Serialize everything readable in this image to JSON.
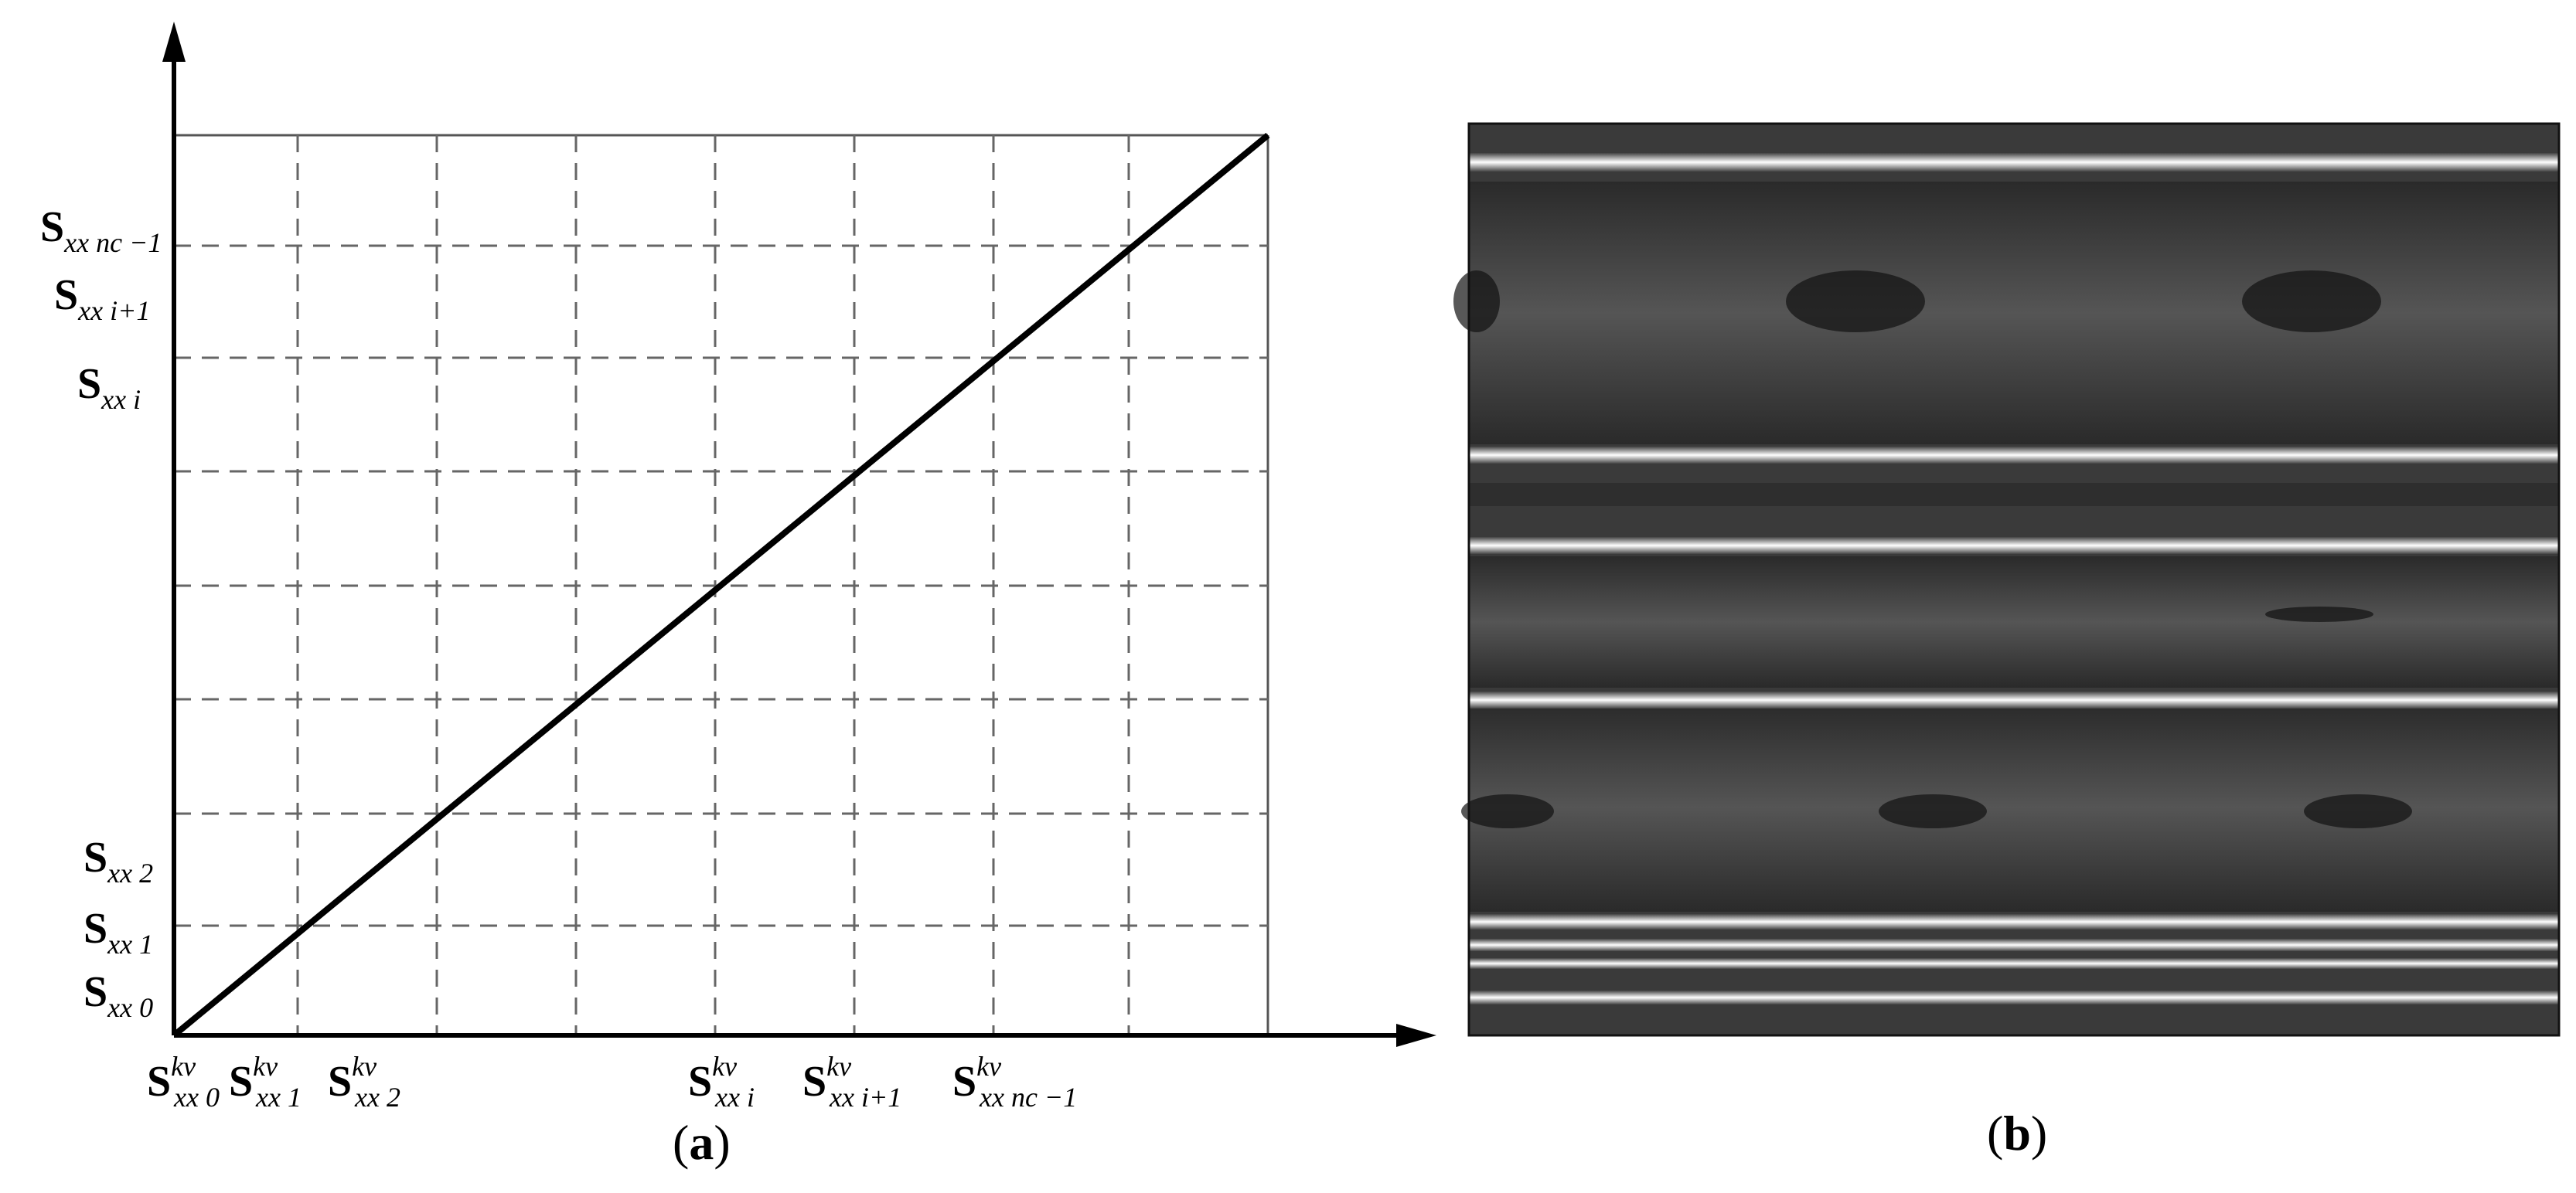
{
  "panel_a": {
    "caption_label": "a",
    "y_labels": [
      {
        "main": "S",
        "sub": "xx 0"
      },
      {
        "main": "S",
        "sub": "xx 1"
      },
      {
        "main": "S",
        "sub": "xx 2"
      },
      {
        "main": "S",
        "sub": "xx i"
      },
      {
        "main": "S",
        "sub": "xx i+1"
      },
      {
        "main": "S",
        "sub": "xx nc −1"
      }
    ],
    "x_labels": [
      {
        "main": "S",
        "sup": "kv",
        "sub": "xx 0"
      },
      {
        "main": "S",
        "sup": "kv",
        "sub": "xx 1"
      },
      {
        "main": "S",
        "sup": "kv",
        "sub": "xx 2"
      },
      {
        "main": "S",
        "sup": "kv",
        "sub": "xx i"
      },
      {
        "main": "S",
        "sup": "kv",
        "sub": "xx i+1"
      },
      {
        "main": "S",
        "sup": "kv",
        "sub": "xx nc −1"
      }
    ]
  },
  "panel_b": {
    "caption_label": "b",
    "image_description_colors": {
      "background": "#3a3a3a",
      "stripe": "#ffffff"
    }
  }
}
